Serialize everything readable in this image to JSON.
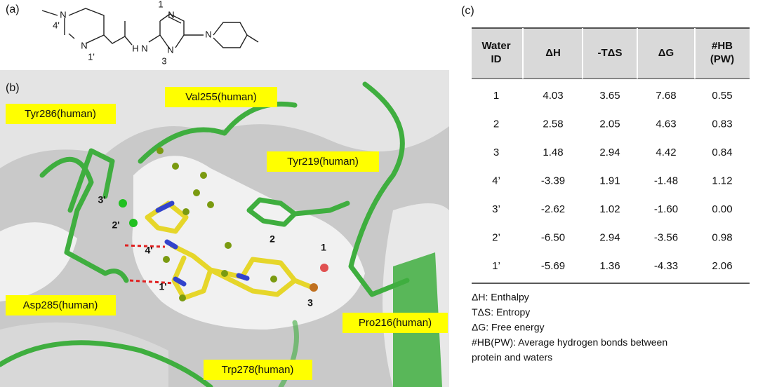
{
  "panels": {
    "a": "(a)",
    "b": "(b)",
    "c": "(c)"
  },
  "structure": {
    "labels": [
      "N",
      "4'",
      "N",
      "1'",
      "H",
      "N",
      "1",
      "N",
      "N",
      "3",
      "N"
    ]
  },
  "render": {
    "residues": [
      "Val255(human)",
      "Tyr286(human)",
      "Tyr219(human)",
      "Asp285(human)",
      "Pro216(human)",
      "Trp278(human)"
    ],
    "waters": [
      "3'",
      "2'",
      "4'",
      "1'",
      "2",
      "1",
      "3"
    ]
  },
  "table": {
    "header": [
      "Water ID",
      "ΔH",
      "-TΔS",
      "ΔG",
      "#HB (PW)"
    ],
    "rows": [
      [
        "1",
        "4.03",
        "3.65",
        "7.68",
        "0.55"
      ],
      [
        "2",
        "2.58",
        "2.05",
        "4.63",
        "0.83"
      ],
      [
        "3",
        "1.48",
        "2.94",
        "4.42",
        "0.84"
      ],
      [
        "4’",
        "-3.39",
        "1.91",
        "-1.48",
        "1.12"
      ],
      [
        "3’",
        "-2.62",
        "1.02",
        "-1.60",
        "0.00"
      ],
      [
        "2’",
        "-6.50",
        "2.94",
        "-3.56",
        "0.98"
      ],
      [
        "1’",
        "-5.69",
        "1.36",
        "-4.33",
        "2.06"
      ]
    ]
  },
  "notes": [
    "ΔH:   Enthalpy",
    "TΔS: Entropy",
    "ΔG:   Free energy",
    "#HB(PW): Average hydrogen bonds between",
    "protein and waters"
  ]
}
